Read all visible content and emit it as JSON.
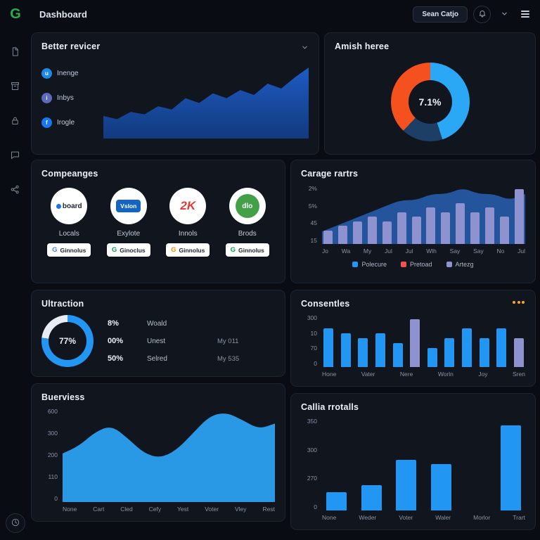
{
  "topbar": {
    "logo": "G",
    "title": "Dashboard",
    "user_button": "Sean Catjo"
  },
  "cards": {
    "better_revicer": {
      "title": "Better revicer",
      "legend": [
        {
          "label": "Inenge",
          "color": "#1e88e5",
          "glyph": "u"
        },
        {
          "label": "Inbys",
          "color": "#5c6bc0",
          "glyph": "i"
        },
        {
          "label": "Irogle",
          "color": "#1877f2",
          "glyph": "f"
        }
      ],
      "chart_data": {
        "type": "area",
        "values": [
          28,
          24,
          33,
          30,
          40,
          36,
          50,
          44,
          56,
          50,
          60,
          54,
          68,
          62,
          76,
          88
        ],
        "color_top": "#1d5bc4",
        "color_bottom": "#123a7d"
      }
    },
    "amish_heree": {
      "title": "Amish heree",
      "chart_data": {
        "type": "donut",
        "center_label": "7.1%",
        "segments": [
          {
            "name": "blue",
            "value": 45,
            "color": "#2aa7f5"
          },
          {
            "name": "navy",
            "value": 17,
            "color": "#1d3f66"
          },
          {
            "name": "orange",
            "value": 38,
            "color": "#f4511e"
          }
        ]
      }
    },
    "compeanges": {
      "title": "Compeanges",
      "companies": [
        {
          "logo": "board",
          "label": "Locals",
          "button": "Ginnolus",
          "logo_color": "#1a73e8",
          "logo_kind": "text-dot",
          "btn_icon_color": "#4285F4"
        },
        {
          "logo": "Vslon",
          "label": "Exylote",
          "button": "Ginoclus",
          "logo_color": "#1565c0",
          "logo_kind": "badge",
          "btn_icon_color": "#0f9d58"
        },
        {
          "logo": "2K",
          "label": "Innols",
          "button": "Ginnolus",
          "logo_color": "#e53935",
          "logo_kind": "big-text",
          "btn_icon_color": "#fb8c00"
        },
        {
          "logo": "dlo",
          "label": "Brods",
          "button": "Ginnolus",
          "logo_color": "#43a047",
          "logo_kind": "circle",
          "btn_icon_color": "#0f9d58"
        }
      ]
    },
    "carage_rartrs": {
      "title": "Carage rartrs",
      "chart_data": {
        "type": "bar",
        "y_ticks": [
          "2%",
          "5%",
          "45",
          "15"
        ],
        "x_labels": [
          "Jo",
          "Wa",
          "My",
          "Jul",
          "Jul",
          "Wlh",
          "Say",
          "Say",
          "No",
          "Jul"
        ],
        "bar_values": [
          3,
          4,
          5,
          6,
          5,
          7,
          6,
          8,
          7,
          9,
          7,
          8,
          6,
          12
        ],
        "area_values": [
          2,
          3,
          4,
          5,
          6,
          7,
          7,
          8,
          8,
          9,
          8,
          8,
          7,
          8
        ],
        "bar_color": "#8e93cf",
        "area_color": "#2a66c0",
        "legend": [
          {
            "label": "Polecure",
            "color": "#2196f3"
          },
          {
            "label": "Pretoad",
            "color": "#ef5350"
          },
          {
            "label": "Artezg",
            "color": "#8e93cf"
          }
        ]
      }
    },
    "ultraction": {
      "title": "Ultraction",
      "gauge": {
        "percent": 77,
        "label": "77%",
        "color": "#2196f3",
        "track": "#e8edf4"
      },
      "rows": [
        {
          "pct": "8%",
          "label": "Woald",
          "value": ""
        },
        {
          "pct": "00%",
          "label": "Unest",
          "value": "My 011"
        },
        {
          "pct": "50%",
          "label": "Selred",
          "value": "My 535"
        }
      ]
    },
    "consentles": {
      "title": "Consentles",
      "chart_data": {
        "type": "bar",
        "y_ticks": [
          "300",
          "10",
          "70",
          "0"
        ],
        "x_labels": [
          "Hone",
          "Vater",
          "Nere",
          "Worln",
          "Joy",
          "Sren"
        ],
        "values": [
          8,
          7,
          6,
          7,
          5,
          10,
          4,
          6,
          8,
          6,
          8,
          6
        ],
        "bar_color": "#2196f3",
        "purple_color": "#8e93cf",
        "purple_indices": [
          5,
          11
        ]
      }
    },
    "buerviess": {
      "title": "Buerviess",
      "chart_data": {
        "type": "area",
        "y_ticks": [
          "600",
          "300",
          "200",
          "110",
          "0"
        ],
        "x_labels": [
          "None",
          "Cart",
          "Cled",
          "Cefy",
          "Yest",
          "Voter",
          "Vley",
          "Rest"
        ],
        "values": [
          52,
          60,
          75,
          82,
          68,
          52,
          47,
          56,
          74,
          92,
          96,
          88,
          78,
          84
        ],
        "color": "#2b9ff0"
      }
    },
    "callia_rrotalls": {
      "title": "Callia rrotalls",
      "chart_data": {
        "type": "bar",
        "y_ticks": [
          "350",
          "300",
          "270",
          "0"
        ],
        "x_labels": [
          "None",
          "Weder",
          "Voter",
          "Waler",
          "Morlor",
          "Trart"
        ],
        "values": [
          70,
          95,
          190,
          175,
          0,
          320
        ],
        "max": 350,
        "color": "#2196f3"
      }
    }
  }
}
